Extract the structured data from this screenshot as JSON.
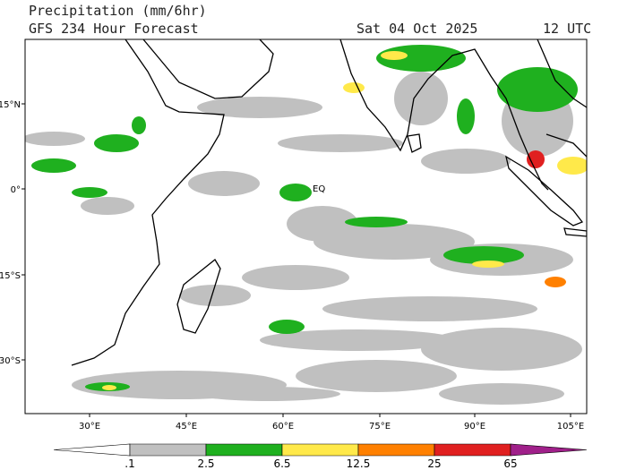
{
  "header": {
    "title": "Precipitation (mm/6hr)",
    "subtitle": "GFS 234 Hour Forecast",
    "date": "Sat 04 Oct 2025",
    "time": "12 UTC"
  },
  "map": {
    "lat_labels": [
      "15°N",
      "0°",
      "15°S",
      "30°S"
    ],
    "lon_labels": [
      "30°E",
      "45°E",
      "60°E",
      "75°E",
      "90°E",
      "105°E"
    ],
    "equator_label": "EQ"
  },
  "colorbar": {
    "labels": [
      ".1",
      "2.5",
      "6.5",
      "12.5",
      "25",
      "65"
    ]
  }
}
